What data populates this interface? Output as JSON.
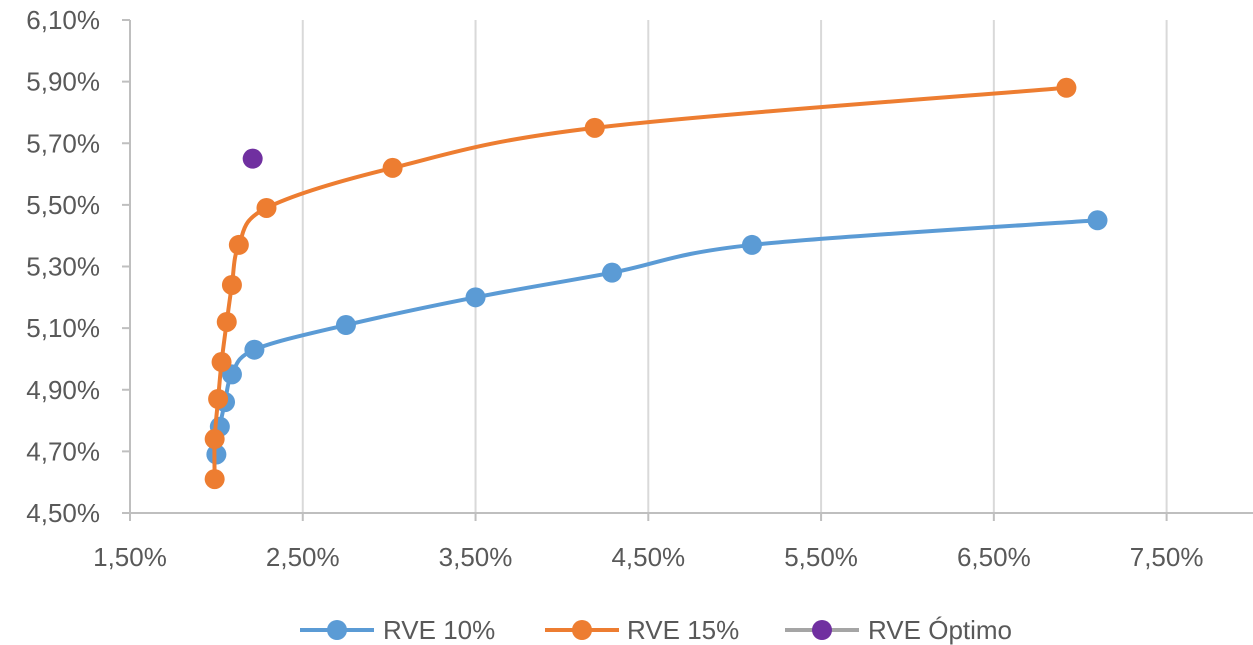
{
  "chart_data": {
    "type": "scatter",
    "title": "",
    "xlabel": "",
    "ylabel": "",
    "xlim": [
      0.015,
      0.08
    ],
    "ylim": [
      0.045,
      0.061
    ],
    "x_ticks": [
      0.015,
      0.025,
      0.035,
      0.045,
      0.055,
      0.065,
      0.075
    ],
    "x_tick_labels": [
      "1,50%",
      "2,50%",
      "3,50%",
      "4,50%",
      "5,50%",
      "6,50%",
      "7,50%"
    ],
    "y_ticks": [
      0.045,
      0.047,
      0.049,
      0.051,
      0.053,
      0.055,
      0.057,
      0.059,
      0.061
    ],
    "y_tick_labels": [
      "4,50%",
      "4,70%",
      "4,90%",
      "5,10%",
      "5,30%",
      "5,50%",
      "5,70%",
      "5,90%",
      "6,10%"
    ],
    "grid": {
      "vertical": true,
      "horizontal": false
    },
    "legend_position": "bottom",
    "series": [
      {
        "name": "RVE 10%",
        "color": "#5B9BD5",
        "smooth": true,
        "points": [
          [
            0.02,
            0.0469
          ],
          [
            0.0202,
            0.0478
          ],
          [
            0.0205,
            0.0486
          ],
          [
            0.0209,
            0.0495
          ],
          [
            0.0222,
            0.0503
          ],
          [
            0.0275,
            0.0511
          ],
          [
            0.035,
            0.052
          ],
          [
            0.0429,
            0.0528
          ],
          [
            0.051,
            0.0537
          ],
          [
            0.071,
            0.0545
          ]
        ]
      },
      {
        "name": "RVE 15%",
        "color": "#ED7D31",
        "smooth": true,
        "points": [
          [
            0.0199,
            0.0461
          ],
          [
            0.0199,
            0.0474
          ],
          [
            0.0201,
            0.0487
          ],
          [
            0.0203,
            0.0499
          ],
          [
            0.0206,
            0.0512
          ],
          [
            0.0209,
            0.0524
          ],
          [
            0.0213,
            0.0537
          ],
          [
            0.0229,
            0.0549
          ],
          [
            0.0302,
            0.0562
          ],
          [
            0.0419,
            0.0575
          ],
          [
            0.0692,
            0.0588
          ]
        ]
      },
      {
        "name": "RVE Óptimo",
        "color": "#7030A0",
        "line_color": "#A5A5A5",
        "smooth": false,
        "points": [
          [
            0.0221,
            0.0565
          ]
        ]
      }
    ]
  }
}
